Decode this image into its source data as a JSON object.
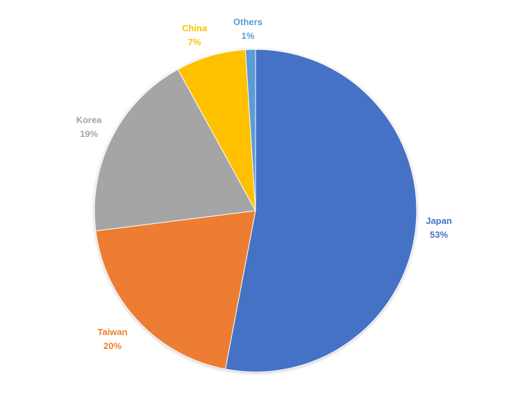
{
  "chart_data": {
    "type": "pie",
    "title": "",
    "start_angle": "12 o'clock, clockwise",
    "slices": [
      {
        "label": "Japan",
        "value": 53,
        "value_label": "53%",
        "color": "#4472C4"
      },
      {
        "label": "Taiwan",
        "value": 20,
        "value_label": "20%",
        "color": "#ED7D31"
      },
      {
        "label": "Korea",
        "value": 19,
        "value_label": "19%",
        "color": "#A5A5A5"
      },
      {
        "label": "China",
        "value": 7,
        "value_label": "7%",
        "color": "#FFC000"
      },
      {
        "label": "Others",
        "value": 1,
        "value_label": "1%",
        "color": "#5B9BD5"
      }
    ],
    "legend": "none",
    "data_labels": "outside"
  }
}
